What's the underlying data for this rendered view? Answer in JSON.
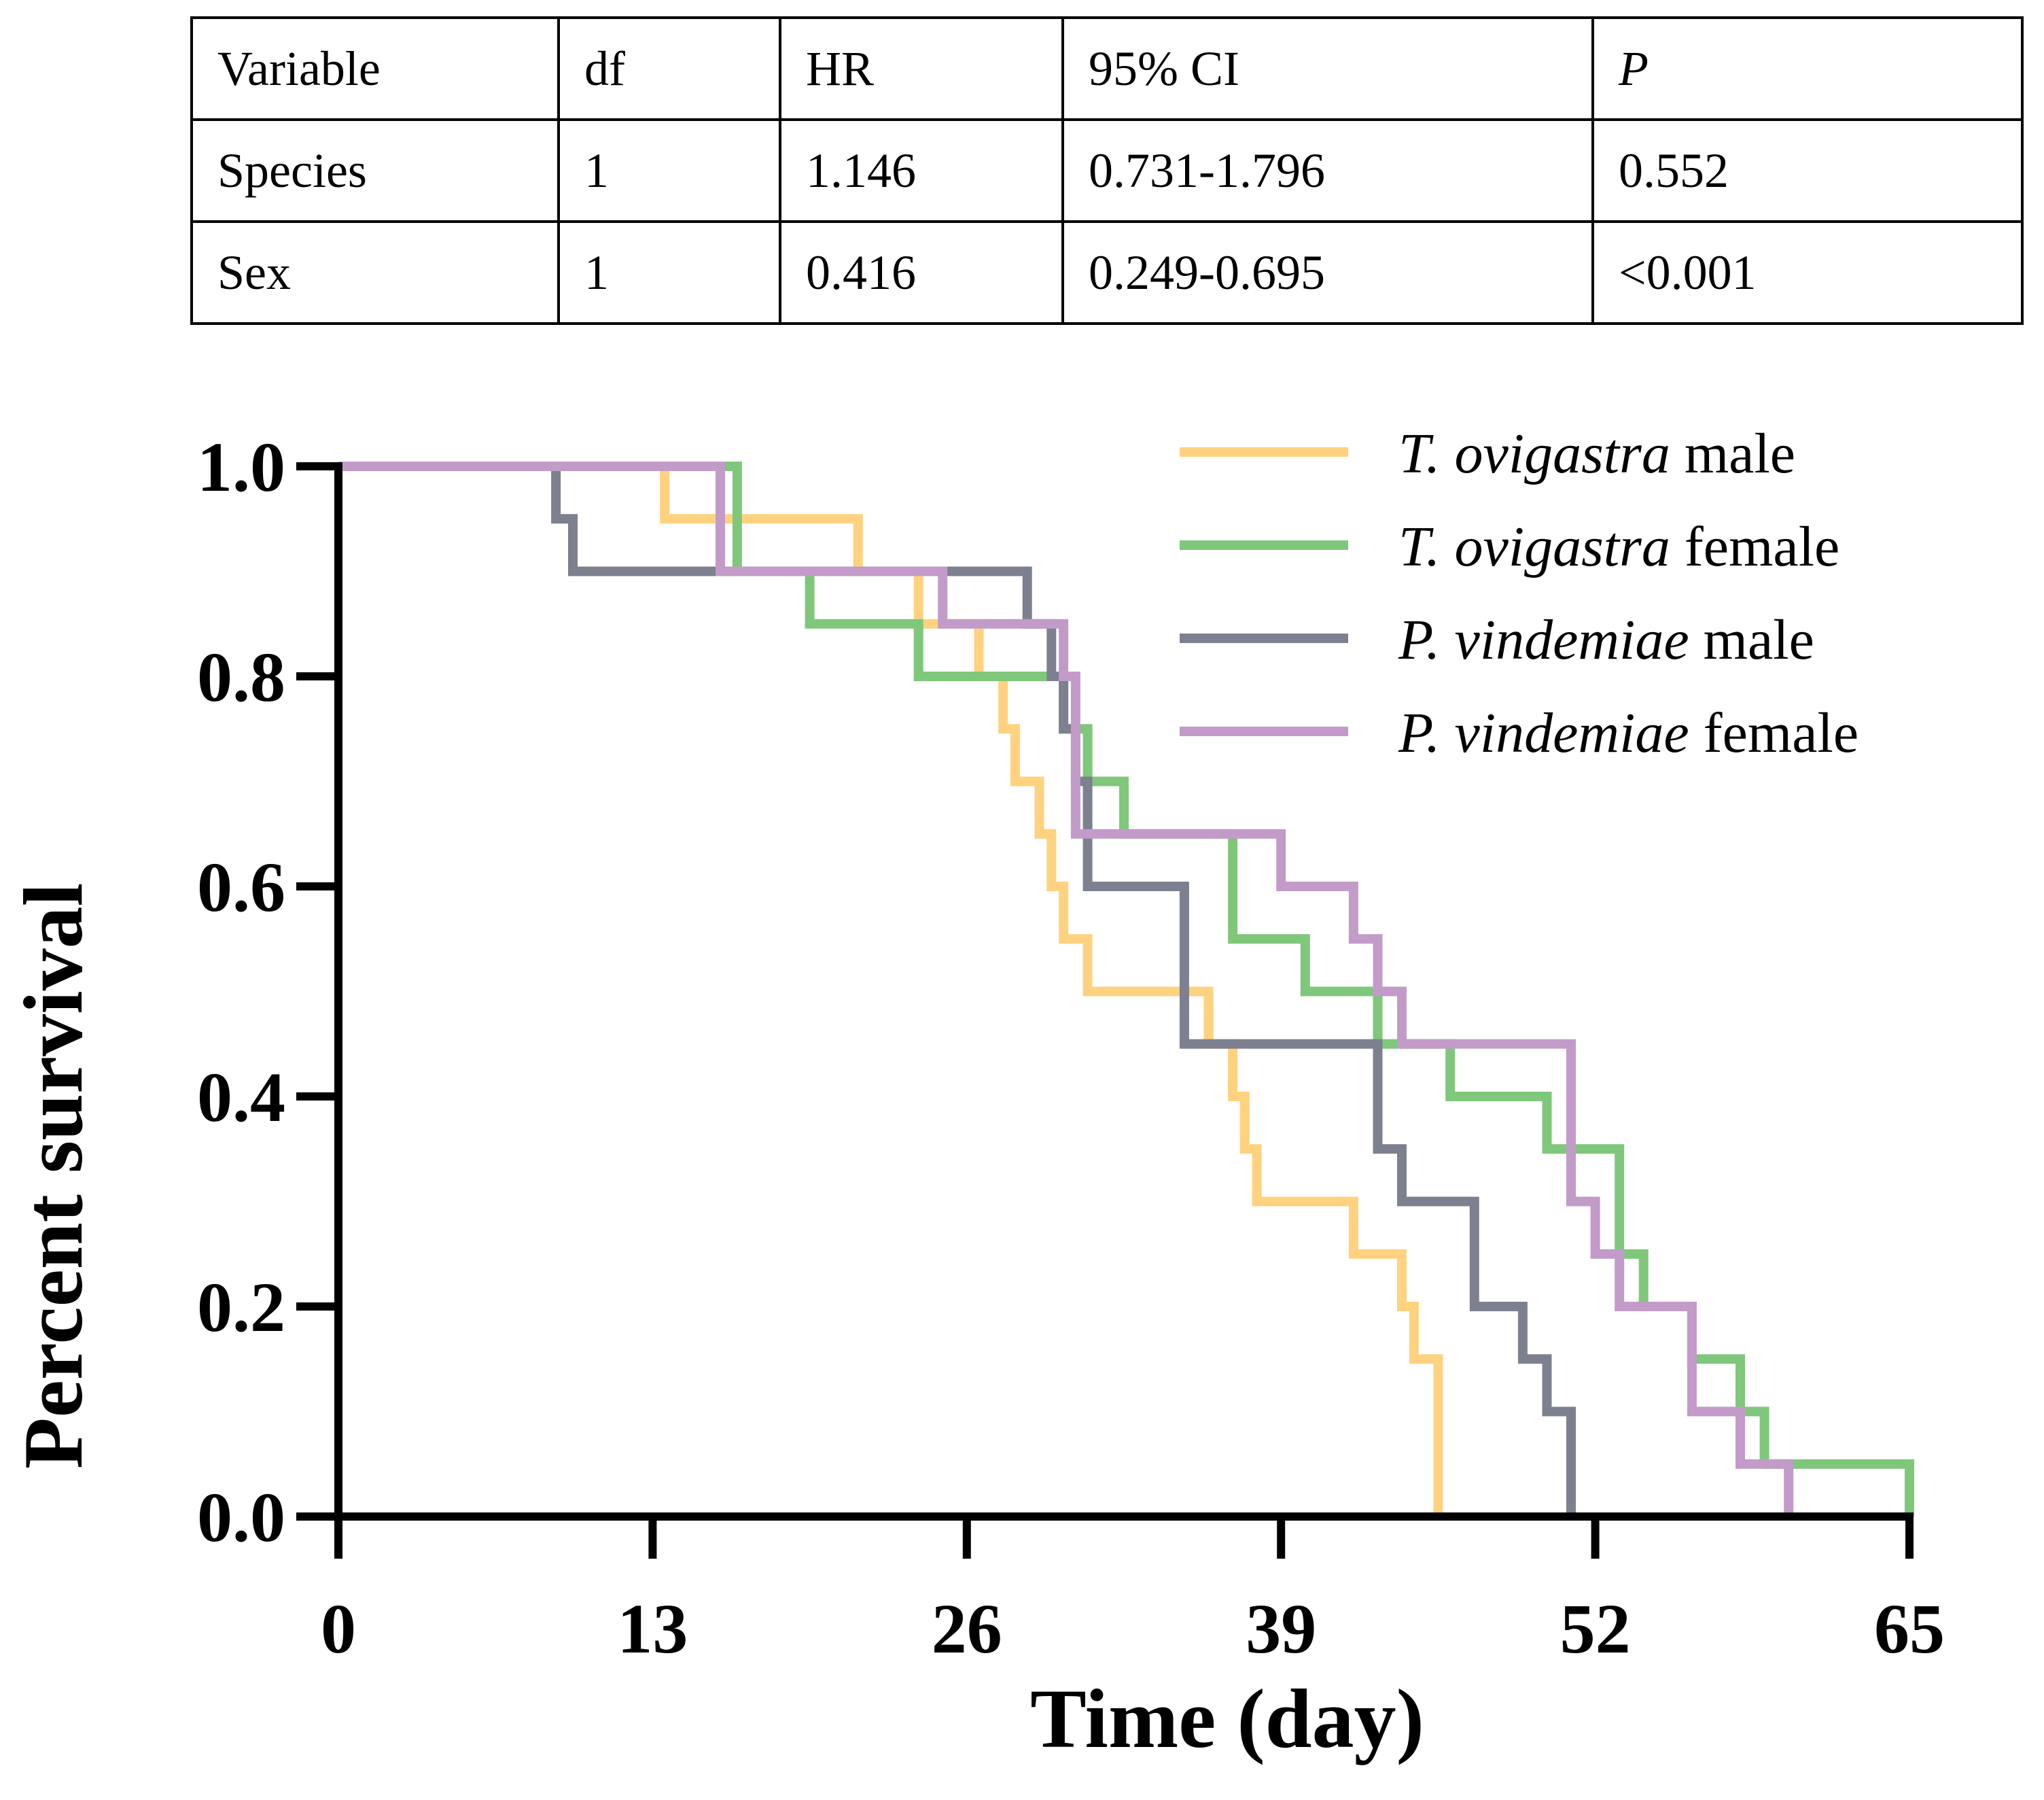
{
  "table": {
    "headers": [
      "Variable",
      "df",
      "HR",
      "95% CI",
      "P"
    ],
    "rows": [
      [
        "Species",
        "1",
        "1.146",
        "0.731-1.796",
        "0.552"
      ],
      [
        "Sex",
        "1",
        "0.416",
        "0.249-0.695",
        "<0.001"
      ]
    ]
  },
  "chart_data": {
    "type": "line",
    "step": true,
    "xlabel": "Time (day)",
    "ylabel": "Percent survival",
    "xlim": [
      0,
      65
    ],
    "ylim": [
      0,
      1.0
    ],
    "xticks": [
      "0",
      "13",
      "26",
      "39",
      "52",
      "65"
    ],
    "yticks": [
      "0.0",
      "0.2",
      "0.4",
      "0.6",
      "0.8",
      "1.0"
    ],
    "grid": false,
    "legend_position": "top-right",
    "series": [
      {
        "name": "T. ovigastra male",
        "name_italic": "T. ovigastra",
        "name_plain": " male",
        "color": "#FFD27F",
        "points": [
          [
            0,
            1.0
          ],
          [
            13.5,
            0.95
          ],
          [
            21.5,
            0.9
          ],
          [
            24,
            0.85
          ],
          [
            26.5,
            0.8
          ],
          [
            27.5,
            0.75
          ],
          [
            28,
            0.7
          ],
          [
            29,
            0.65
          ],
          [
            29.5,
            0.6
          ],
          [
            30,
            0.55
          ],
          [
            31,
            0.5
          ],
          [
            36,
            0.45
          ],
          [
            37,
            0.4
          ],
          [
            37.5,
            0.35
          ],
          [
            38,
            0.3
          ],
          [
            42,
            0.25
          ],
          [
            44,
            0.2
          ],
          [
            44.5,
            0.15
          ],
          [
            45.5,
            0.0
          ]
        ]
      },
      {
        "name": "T. ovigastra female",
        "name_italic": "T. ovigastra",
        "name_plain": " female",
        "color": "#7FC77A",
        "points": [
          [
            0,
            1.0
          ],
          [
            16.5,
            0.9
          ],
          [
            19.5,
            0.85
          ],
          [
            24,
            0.8
          ],
          [
            26,
            0.8
          ],
          [
            30,
            0.75
          ],
          [
            31,
            0.7
          ],
          [
            32.5,
            0.65
          ],
          [
            37,
            0.55
          ],
          [
            40,
            0.5
          ],
          [
            43,
            0.45
          ],
          [
            46,
            0.4
          ],
          [
            50,
            0.35
          ],
          [
            53,
            0.25
          ],
          [
            54,
            0.2
          ],
          [
            56,
            0.15
          ],
          [
            58,
            0.1
          ],
          [
            59,
            0.05
          ],
          [
            65,
            0.0
          ]
        ]
      },
      {
        "name": "P. vindemiae male",
        "name_italic": "P. vindemiae",
        "name_plain": " male",
        "color": "#7D808F",
        "points": [
          [
            0,
            1.0
          ],
          [
            9,
            0.95
          ],
          [
            9.7,
            0.9
          ],
          [
            21,
            0.9
          ],
          [
            28.5,
            0.85
          ],
          [
            29.5,
            0.8
          ],
          [
            30,
            0.75
          ],
          [
            30.5,
            0.7
          ],
          [
            31,
            0.6
          ],
          [
            35,
            0.45
          ],
          [
            43,
            0.35
          ],
          [
            44,
            0.3
          ],
          [
            47,
            0.2
          ],
          [
            49,
            0.15
          ],
          [
            50,
            0.1
          ],
          [
            51,
            0.0
          ]
        ]
      },
      {
        "name": "P. vindemiae female",
        "name_italic": "P. vindemiae",
        "name_plain": " female",
        "color": "#C29BC9",
        "points": [
          [
            0,
            1.0
          ],
          [
            15.8,
            0.9
          ],
          [
            25,
            0.85
          ],
          [
            29,
            0.85
          ],
          [
            30,
            0.8
          ],
          [
            30.5,
            0.7
          ],
          [
            30.5,
            0.65
          ],
          [
            32,
            0.65
          ],
          [
            39,
            0.6
          ],
          [
            42,
            0.55
          ],
          [
            43,
            0.5
          ],
          [
            44,
            0.45
          ],
          [
            51,
            0.3
          ],
          [
            52,
            0.25
          ],
          [
            53,
            0.2
          ],
          [
            56,
            0.1
          ],
          [
            58,
            0.05
          ],
          [
            60,
            0.0
          ]
        ]
      }
    ]
  }
}
